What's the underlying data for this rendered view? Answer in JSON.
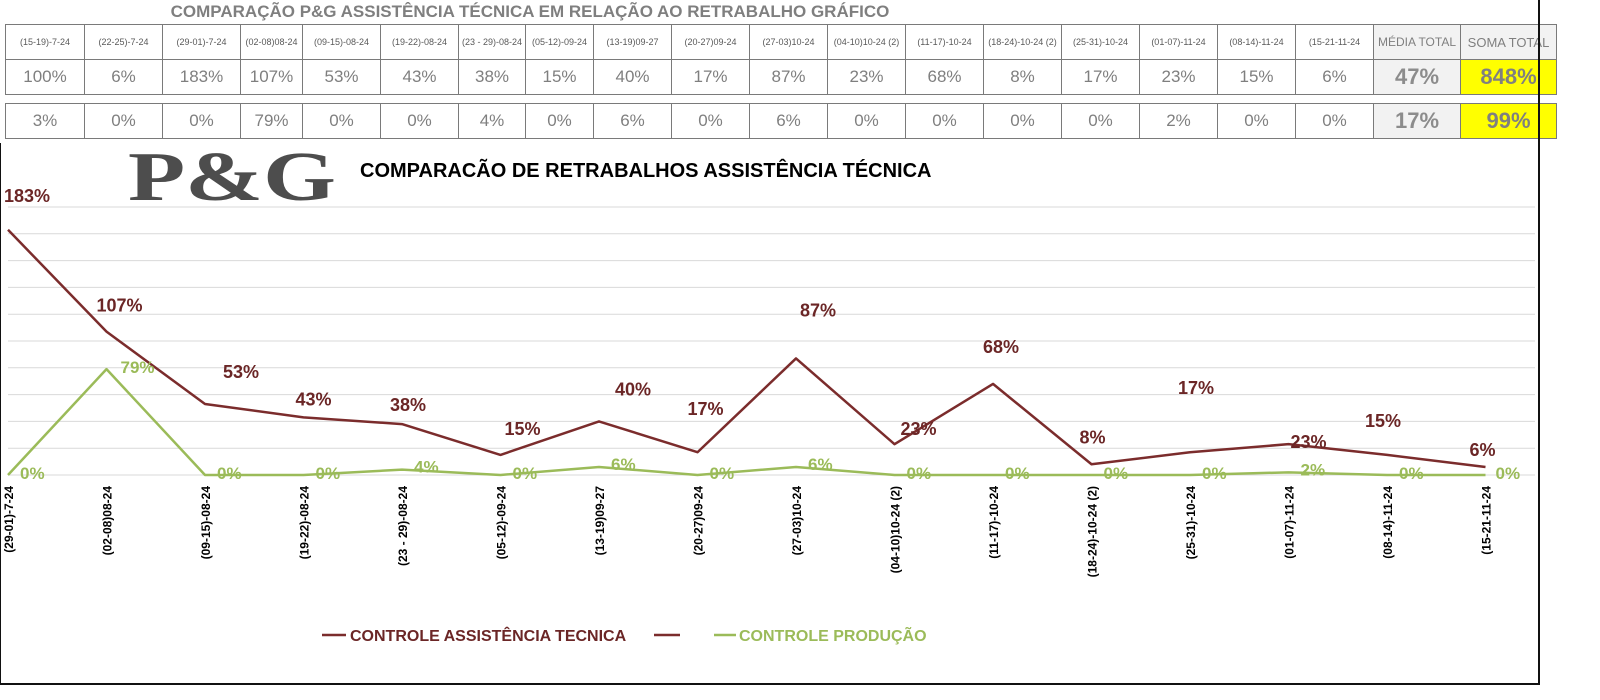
{
  "sheet": {
    "title": "COMPARAÇÃO P&G  ASSISTÊNCIA TÉCNICA EM RELAÇÃO AO RETRABALHO GRÁFICO",
    "header_periods": [
      "(15-19)-7-24",
      "(22-25)-7-24",
      "(29-01)-7-24",
      "(02-08)08-24",
      "(09-15)-08-24",
      "(19-22)-08-24",
      "(23 - 29)-08-24",
      "(05-12)-09-24",
      "(13-19)09-27",
      "(20-27)09-24",
      "(27-03)10-24",
      "(04-10)10-24 (2)",
      "(11-17)-10-24",
      "(18-24)-10-24 (2)",
      "(25-31)-10-24",
      "(01-07)-11-24",
      "(08-14)-11-24",
      "(15-21-11-24"
    ],
    "header_media": "MÉDIA TOTAL",
    "header_soma": "SOMA TOTAL",
    "row1": [
      "100%",
      "6%",
      "183%",
      "107%",
      "53%",
      "43%",
      "38%",
      "15%",
      "40%",
      "17%",
      "87%",
      "23%",
      "68%",
      "8%",
      "17%",
      "23%",
      "15%",
      "6%"
    ],
    "row1_media": "47%",
    "row1_soma": "848%",
    "row2": [
      "3%",
      "0%",
      "0%",
      "79%",
      "0%",
      "0%",
      "4%",
      "0%",
      "6%",
      "0%",
      "6%",
      "0%",
      "0%",
      "0%",
      "0%",
      "2%",
      "0%",
      "0%"
    ],
    "row2_media": "17%",
    "row2_soma": "99%"
  },
  "logo": {
    "text": "P&G"
  },
  "chart_data": {
    "type": "line",
    "title": "COMPARACÃO DE RETRABALHOS  ASSISTÊNCIA TÉCNICA",
    "categories": [
      "(29-01)-7-24",
      "(02-08)08-24",
      "(09-15)-08-24",
      "(19-22)-08-24",
      "(23 - 29)-08-24",
      "(05-12)-09-24",
      "(13-19)09-27",
      "(20-27)09-24",
      "(27-03)10-24",
      "(04-10)10-24 (2)",
      "(11-17)-10-24",
      "(18-24)-10-24 (2)",
      "(25-31)-10-24",
      "(01-07)-11-24",
      "(08-14)-11-24",
      "(15-21-11-24"
    ],
    "series": [
      {
        "name": "CONTROLE ASSISTÊNCIA TECNICA",
        "color": "#7b2c2c",
        "values": [
          183,
          107,
          53,
          43,
          38,
          15,
          40,
          17,
          87,
          23,
          68,
          8,
          17,
          23,
          15,
          6
        ],
        "labels": [
          "183%",
          "107%",
          "53%",
          "43%",
          "38%",
          "15%",
          "40%",
          "17%",
          "87%",
          "23%",
          "68%",
          "8%",
          "17%",
          "23%",
          "15%",
          "6%"
        ]
      },
      {
        "name": "CONTROLE PRODUÇÃO",
        "color": "#9bbb59",
        "values": [
          0,
          79,
          0,
          0,
          4,
          0,
          6,
          0,
          6,
          0,
          0,
          0,
          0,
          2,
          0,
          0
        ],
        "labels": [
          "0%",
          "79%",
          "0%",
          "0%",
          "4%",
          "0%",
          "6%",
          "0%",
          "6%",
          "0%",
          "0%",
          "0%",
          "0%",
          "2%",
          "0%",
          "0%"
        ]
      }
    ],
    "ylim": [
      0,
      200
    ],
    "grid": true,
    "legend": "bottom"
  }
}
